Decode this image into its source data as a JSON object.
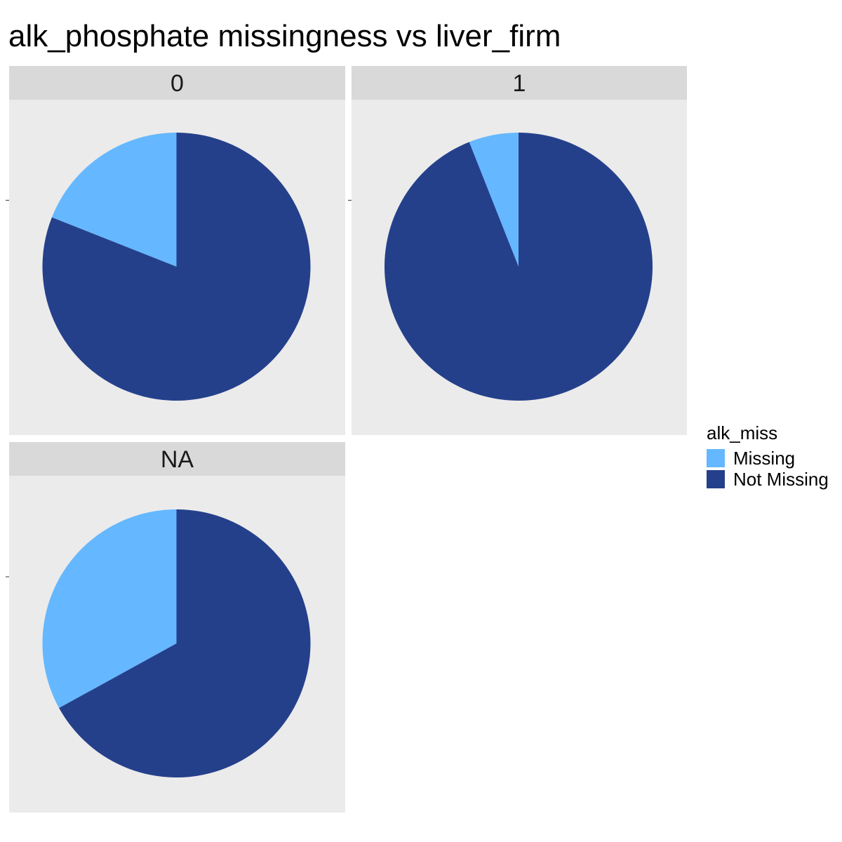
{
  "chart_data": {
    "type": "pie",
    "title": "alk_phosphate missingness vs liver_firm",
    "facet_variable": "liver_firm",
    "legend": {
      "title": "alk_miss",
      "placement": "right",
      "entries": [
        {
          "label": "Missing",
          "color": "#65B8FF"
        },
        {
          "label": "Not Missing",
          "color": "#25408B"
        }
      ]
    },
    "facets": [
      {
        "label": "0",
        "slices": [
          {
            "name": "Missing",
            "value": 0.19
          },
          {
            "name": "Not Missing",
            "value": 0.81
          }
        ]
      },
      {
        "label": "1",
        "slices": [
          {
            "name": "Missing",
            "value": 0.06
          },
          {
            "name": "Not Missing",
            "value": 0.94
          }
        ]
      },
      {
        "label": "NA",
        "slices": [
          {
            "name": "Missing",
            "value": 0.33
          },
          {
            "name": "Not Missing",
            "value": 0.67
          }
        ]
      }
    ]
  }
}
